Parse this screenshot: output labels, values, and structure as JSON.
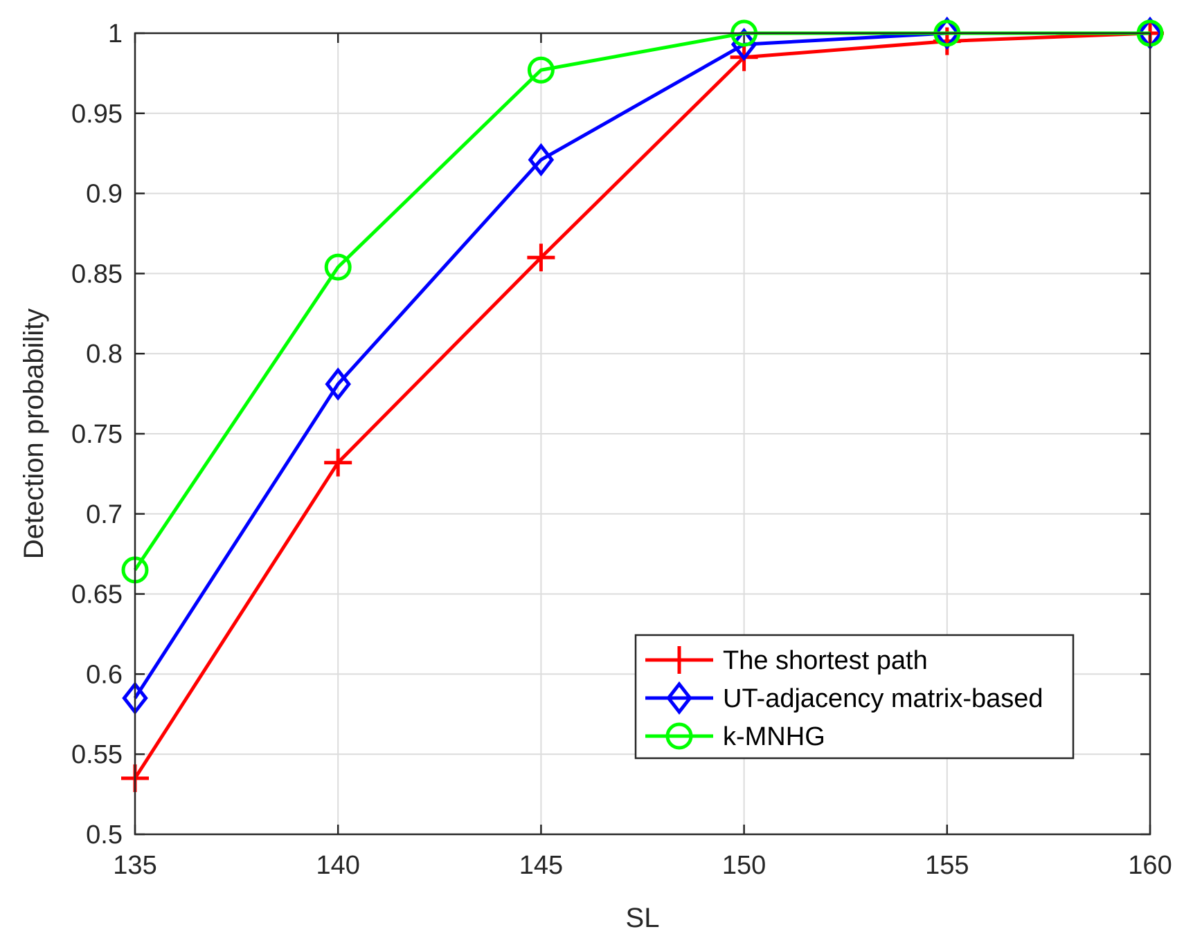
{
  "chart_data": {
    "type": "line",
    "xlabel": "SL",
    "ylabel": "Detection probability",
    "x": [
      135,
      140,
      145,
      150,
      155,
      160
    ],
    "xlim": [
      135,
      160
    ],
    "ylim": [
      0.5,
      1
    ],
    "xticks": [
      135,
      140,
      145,
      150,
      155,
      160
    ],
    "yticks": [
      0.5,
      0.55,
      0.6,
      0.65,
      0.7,
      0.75,
      0.8,
      0.85,
      0.9,
      0.95,
      1
    ],
    "x_tick_labels": [
      "135",
      "140",
      "145",
      "150",
      "155",
      "160"
    ],
    "y_tick_labels": [
      "0.5",
      "0.55",
      "0.6",
      "0.65",
      "0.7",
      "0.75",
      "0.8",
      "0.85",
      "0.9",
      "0.95",
      "1"
    ],
    "grid": true,
    "legend_position": "bottom-right",
    "series": [
      {
        "name": "The shortest path",
        "values": [
          0.535,
          0.732,
          0.86,
          0.985,
          0.995,
          1.0
        ],
        "color": "#ff0000",
        "marker": "plus"
      },
      {
        "name": "UT-adjacency matrix-based",
        "values": [
          0.585,
          0.781,
          0.921,
          0.993,
          1.0,
          1.0
        ],
        "color": "#0000ff",
        "marker": "diamond"
      },
      {
        "name": "k-MNHG",
        "values": [
          0.665,
          0.854,
          0.977,
          1.0,
          1.0,
          1.0
        ],
        "color": "#00ff00",
        "marker": "circle"
      }
    ]
  }
}
